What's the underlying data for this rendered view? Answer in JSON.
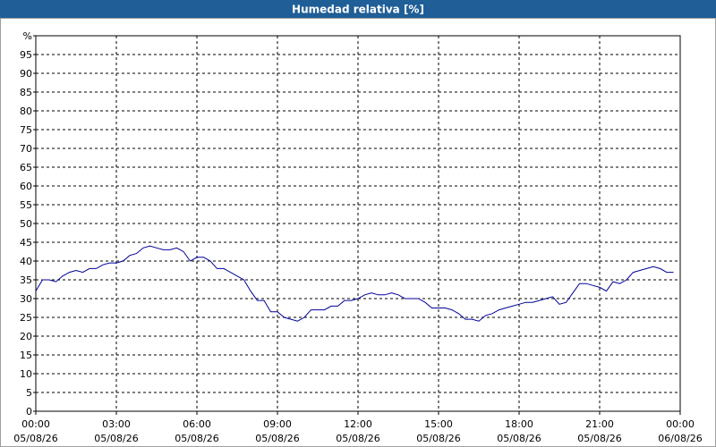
{
  "chart_data": {
    "type": "line",
    "title": "Humedad relativa [%]",
    "x": [
      0,
      0.25,
      0.5,
      0.75,
      1,
      1.25,
      1.5,
      1.75,
      2,
      2.25,
      2.5,
      2.75,
      3,
      3.25,
      3.5,
      3.75,
      4,
      4.25,
      4.5,
      4.75,
      5,
      5.25,
      5.5,
      5.75,
      6,
      6.25,
      6.5,
      6.75,
      7,
      7.25,
      7.5,
      7.75,
      8,
      8.25,
      8.5,
      8.75,
      9,
      9.25,
      9.5,
      9.75,
      10,
      10.25,
      10.5,
      10.75,
      11,
      11.25,
      11.5,
      11.75,
      12,
      12.25,
      12.5,
      12.75,
      13,
      13.25,
      13.5,
      13.75,
      14,
      14.25,
      14.5,
      14.75,
      15,
      15.25,
      15.5,
      15.75,
      16,
      16.25,
      16.5,
      16.75,
      17,
      17.25,
      17.5,
      17.75,
      18,
      18.25,
      18.5,
      18.75,
      19,
      19.25,
      19.5,
      19.75,
      20,
      20.25,
      20.5,
      20.75,
      21,
      21.25,
      21.5,
      21.75,
      22,
      22.25,
      22.5,
      22.75,
      23,
      23.25,
      23.5,
      23.75
    ],
    "series": [
      {
        "color": "#000099",
        "values": [
          32,
          35,
          35,
          34.5,
          36,
          37,
          37.5,
          37,
          38,
          38,
          39,
          39.5,
          39.5,
          40,
          41.5,
          42,
          43.5,
          44,
          43.5,
          43,
          43,
          43.5,
          42.5,
          40,
          41,
          41,
          40,
          38,
          38,
          37,
          36,
          35,
          32,
          29.5,
          29.5,
          26.5,
          26.5,
          25,
          24.5,
          24,
          25,
          27,
          27,
          27,
          28,
          28,
          29.5,
          29.5,
          30,
          31,
          31.5,
          31,
          31,
          31.5,
          31,
          30,
          30,
          30,
          29,
          27.5,
          27.5,
          27.5,
          27,
          26,
          24.5,
          24.5,
          24,
          25.5,
          26,
          27,
          27.5,
          28,
          28.5,
          29,
          29,
          29.5,
          30,
          30.5,
          28.5,
          29,
          31.5,
          34,
          34,
          33.5,
          33,
          32,
          34.5,
          34,
          35,
          37,
          37.5,
          38,
          38.5,
          38,
          37,
          37
        ]
      }
    ],
    "xlim": [
      0,
      24
    ],
    "xticks": [
      {
        "value": 0,
        "label": "00:00",
        "date": "05/08/26"
      },
      {
        "value": 3,
        "label": "03:00",
        "date": "05/08/26"
      },
      {
        "value": 6,
        "label": "06:00",
        "date": "05/08/26"
      },
      {
        "value": 9,
        "label": "09:00",
        "date": "05/08/26"
      },
      {
        "value": 12,
        "label": "12:00",
        "date": "05/08/26"
      },
      {
        "value": 15,
        "label": "15:00",
        "date": "05/08/26"
      },
      {
        "value": 18,
        "label": "18:00",
        "date": "05/08/26"
      },
      {
        "value": 21,
        "label": "21:00",
        "date": "05/08/26"
      },
      {
        "value": 24,
        "label": "00:00",
        "date": "06/08/26"
      }
    ],
    "ylim": [
      0,
      100
    ],
    "yticks": [
      0,
      5,
      10,
      15,
      20,
      25,
      30,
      35,
      40,
      45,
      50,
      55,
      60,
      65,
      70,
      75,
      80,
      85,
      90,
      95,
      {
        "value": 100,
        "label": "%"
      }
    ],
    "grid": true
  }
}
